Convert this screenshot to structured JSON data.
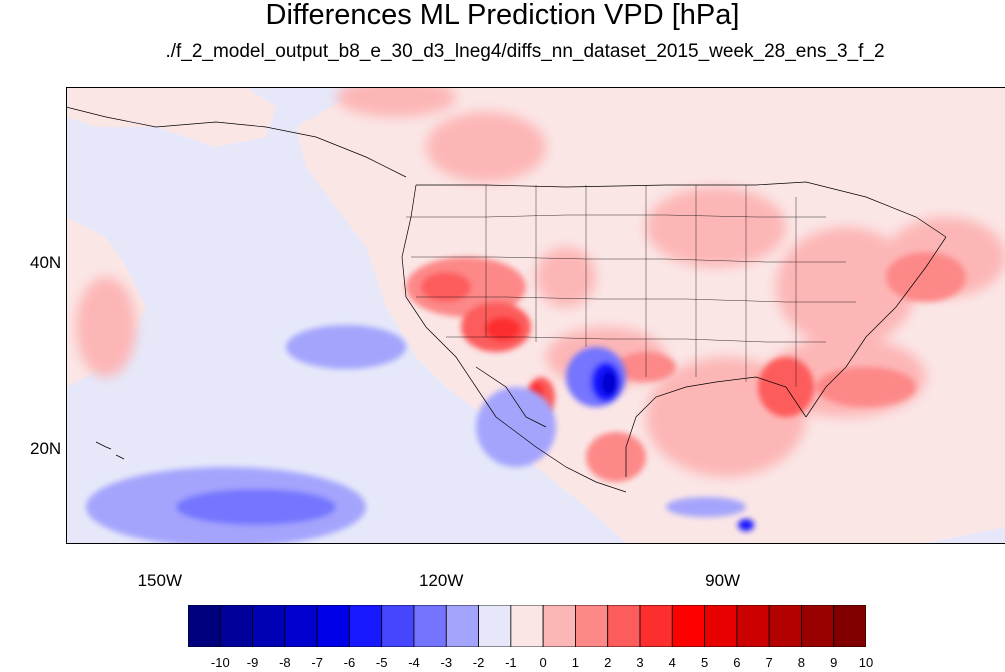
{
  "title": "Differences ML Prediction VPD [hPa]",
  "subtitle": "./f_2_model_output_b8_e_30_d3_lneg4/diffs_nn_dataset_2015_week_28_ens_3_f_2",
  "map": {
    "lon_range": [
      -160,
      -60
    ],
    "lat_range": [
      10,
      59
    ],
    "lon_ticks": [
      {
        "value": -150,
        "label": "150W"
      },
      {
        "value": -120,
        "label": "120W"
      },
      {
        "value": -90,
        "label": "90W"
      }
    ],
    "lat_ticks": [
      {
        "value": 40,
        "label": "40N"
      },
      {
        "value": 20,
        "label": "20N"
      }
    ],
    "background_color": "#e6e8fa"
  },
  "colorbar": {
    "labels": [
      "-10",
      "-9",
      "-8",
      "-7",
      "-6",
      "-5",
      "-4",
      "-3",
      "-2",
      "-1",
      "0",
      "1",
      "2",
      "3",
      "4",
      "5",
      "6",
      "7",
      "8",
      "9",
      "10"
    ],
    "colors": [
      "#00007f",
      "#00009a",
      "#0000b4",
      "#0000cf",
      "#0000e8",
      "#1818ff",
      "#4646ff",
      "#7474ff",
      "#a4a4fd",
      "#e6e8fa",
      "#fbe6e6",
      "#fdb6b6",
      "#fd8888",
      "#fd5c5c",
      "#fd2e2e",
      "#ff0000",
      "#e60000",
      "#cc0000",
      "#b30000",
      "#990000",
      "#800000"
    ]
  }
}
